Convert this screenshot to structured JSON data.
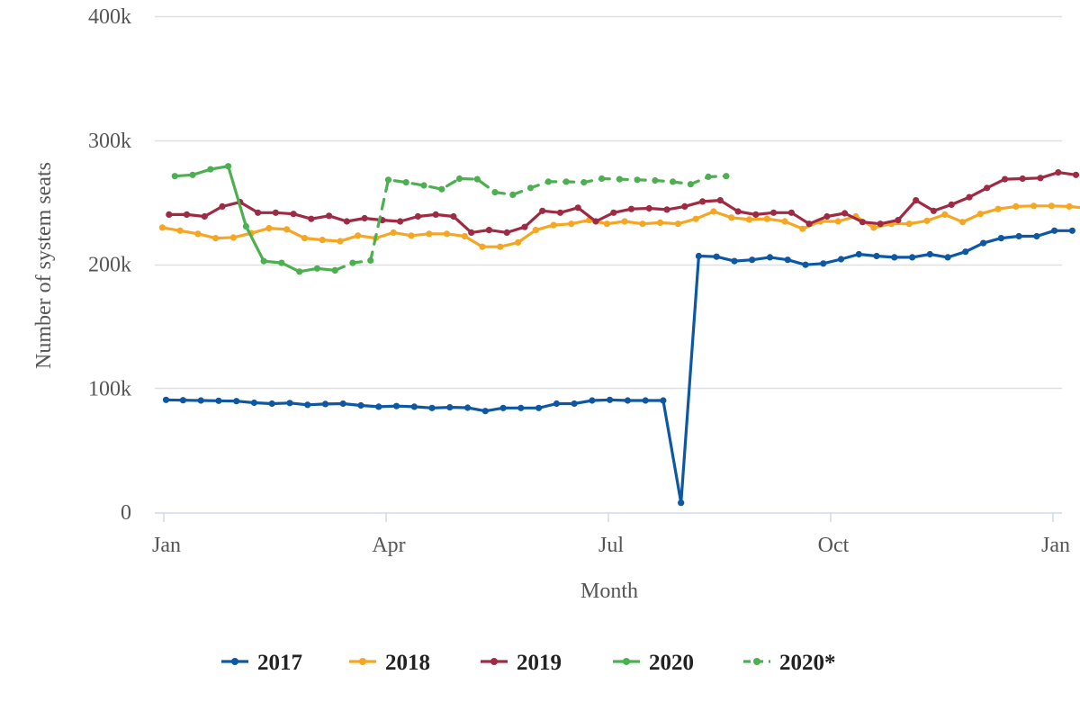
{
  "chart_data": {
    "type": "line",
    "xlabel": "Month",
    "ylabel": "Number of system seats",
    "ylim": [
      0,
      400000
    ],
    "xlim": [
      0,
      12
    ],
    "grid": "horizontal",
    "legend_position": "bottom",
    "y_ticks": [
      {
        "value": 0,
        "label": "0"
      },
      {
        "value": 100000,
        "label": "100k"
      },
      {
        "value": 200000,
        "label": "200k"
      },
      {
        "value": 300000,
        "label": "300k"
      },
      {
        "value": 400000,
        "label": "400k"
      }
    ],
    "x_ticks": [
      {
        "value": 0,
        "label": "Jan"
      },
      {
        "value": 3,
        "label": "Apr"
      },
      {
        "value": 6,
        "label": "Jul"
      },
      {
        "value": 9,
        "label": "Oct"
      },
      {
        "value": 12,
        "label": "Jan"
      }
    ],
    "x_unit": "months from Jan 1",
    "series": [
      {
        "name": "2017",
        "color": "#0d57a3",
        "dash": false,
        "points": [
          [
            0.03,
            90500
          ],
          [
            0.26,
            90200
          ],
          [
            0.5,
            90000
          ],
          [
            0.74,
            89800
          ],
          [
            0.98,
            89500
          ],
          [
            1.22,
            88200
          ],
          [
            1.46,
            87500
          ],
          [
            1.7,
            88000
          ],
          [
            1.94,
            86500
          ],
          [
            2.18,
            87200
          ],
          [
            2.42,
            87500
          ],
          [
            2.66,
            86000
          ],
          [
            2.9,
            85000
          ],
          [
            3.14,
            85500
          ],
          [
            3.38,
            85000
          ],
          [
            3.62,
            84000
          ],
          [
            3.86,
            84500
          ],
          [
            4.1,
            84200
          ],
          [
            4.34,
            81500
          ],
          [
            4.58,
            84000
          ],
          [
            4.82,
            84000
          ],
          [
            5.06,
            84000
          ],
          [
            5.3,
            87500
          ],
          [
            5.54,
            87500
          ],
          [
            5.78,
            90000
          ],
          [
            6.02,
            90500
          ],
          [
            6.26,
            90000
          ],
          [
            6.5,
            90000
          ],
          [
            6.74,
            90000
          ],
          [
            6.98,
            7500
          ],
          [
            7.22,
            206500
          ],
          [
            7.46,
            206000
          ],
          [
            7.7,
            202500
          ],
          [
            7.94,
            203500
          ],
          [
            8.18,
            205500
          ],
          [
            8.42,
            203500
          ],
          [
            8.66,
            199500
          ],
          [
            8.9,
            200500
          ],
          [
            9.14,
            204000
          ],
          [
            9.38,
            208000
          ],
          [
            9.62,
            206500
          ],
          [
            9.86,
            205500
          ],
          [
            10.1,
            205500
          ],
          [
            10.34,
            208000
          ],
          [
            10.58,
            205500
          ],
          [
            10.82,
            210000
          ],
          [
            11.06,
            217000
          ],
          [
            11.3,
            221000
          ],
          [
            11.54,
            222500
          ],
          [
            11.78,
            222500
          ],
          [
            12.02,
            227000
          ],
          [
            12.26,
            227000
          ]
        ]
      },
      {
        "name": "2018",
        "color": "#f5a623",
        "dash": false,
        "points": [
          [
            -0.02,
            229500
          ],
          [
            0.22,
            227000
          ],
          [
            0.46,
            224500
          ],
          [
            0.7,
            221000
          ],
          [
            0.94,
            221500
          ],
          [
            1.18,
            225000
          ],
          [
            1.42,
            229000
          ],
          [
            1.66,
            228000
          ],
          [
            1.9,
            221000
          ],
          [
            2.14,
            219500
          ],
          [
            2.38,
            218500
          ],
          [
            2.62,
            223000
          ],
          [
            2.86,
            221000
          ],
          [
            3.1,
            225500
          ],
          [
            3.34,
            223000
          ],
          [
            3.58,
            224500
          ],
          [
            3.82,
            224500
          ],
          [
            4.06,
            222500
          ],
          [
            4.3,
            214000
          ],
          [
            4.54,
            214000
          ],
          [
            4.78,
            217500
          ],
          [
            5.02,
            227500
          ],
          [
            5.26,
            231500
          ],
          [
            5.5,
            232500
          ],
          [
            5.74,
            235500
          ],
          [
            5.98,
            232500
          ],
          [
            6.22,
            234500
          ],
          [
            6.46,
            232500
          ],
          [
            6.7,
            233500
          ],
          [
            6.94,
            232500
          ],
          [
            7.18,
            236500
          ],
          [
            7.42,
            242500
          ],
          [
            7.66,
            237500
          ],
          [
            7.9,
            236000
          ],
          [
            8.14,
            236500
          ],
          [
            8.38,
            234500
          ],
          [
            8.62,
            228500
          ],
          [
            8.86,
            234500
          ],
          [
            9.1,
            234500
          ],
          [
            9.34,
            238500
          ],
          [
            9.58,
            229500
          ],
          [
            9.82,
            232500
          ],
          [
            10.06,
            232500
          ],
          [
            10.3,
            235000
          ],
          [
            10.54,
            240000
          ],
          [
            10.78,
            234000
          ],
          [
            11.02,
            240500
          ],
          [
            11.26,
            244500
          ],
          [
            11.5,
            246500
          ],
          [
            11.74,
            247000
          ],
          [
            11.98,
            247000
          ],
          [
            12.22,
            246500
          ],
          [
            12.46,
            245000
          ]
        ]
      },
      {
        "name": "2019",
        "color": "#9e2a43",
        "dash": false,
        "points": [
          [
            0.07,
            240000
          ],
          [
            0.31,
            240000
          ],
          [
            0.55,
            238500
          ],
          [
            0.79,
            246500
          ],
          [
            1.03,
            250000
          ],
          [
            1.27,
            241500
          ],
          [
            1.51,
            241500
          ],
          [
            1.75,
            240500
          ],
          [
            1.99,
            236500
          ],
          [
            2.23,
            239000
          ],
          [
            2.47,
            234500
          ],
          [
            2.71,
            237000
          ],
          [
            2.95,
            235500
          ],
          [
            3.19,
            234500
          ],
          [
            3.43,
            238500
          ],
          [
            3.67,
            240000
          ],
          [
            3.91,
            238500
          ],
          [
            4.15,
            225500
          ],
          [
            4.39,
            227500
          ],
          [
            4.63,
            225500
          ],
          [
            4.87,
            230000
          ],
          [
            5.11,
            243000
          ],
          [
            5.35,
            241500
          ],
          [
            5.59,
            245500
          ],
          [
            5.83,
            234500
          ],
          [
            6.07,
            241500
          ],
          [
            6.31,
            244500
          ],
          [
            6.55,
            245000
          ],
          [
            6.79,
            244000
          ],
          [
            7.03,
            246500
          ],
          [
            7.27,
            250500
          ],
          [
            7.51,
            251500
          ],
          [
            7.75,
            242500
          ],
          [
            7.99,
            240000
          ],
          [
            8.23,
            241500
          ],
          [
            8.47,
            241500
          ],
          [
            8.71,
            232500
          ],
          [
            8.95,
            238500
          ],
          [
            9.19,
            241000
          ],
          [
            9.43,
            234000
          ],
          [
            9.67,
            232500
          ],
          [
            9.91,
            235500
          ],
          [
            10.15,
            251500
          ],
          [
            10.39,
            243000
          ],
          [
            10.63,
            248000
          ],
          [
            10.87,
            254000
          ],
          [
            11.11,
            261500
          ],
          [
            11.35,
            268500
          ],
          [
            11.59,
            269000
          ],
          [
            11.83,
            269500
          ],
          [
            12.07,
            274000
          ],
          [
            12.31,
            272000
          ]
        ]
      },
      {
        "name": "2020",
        "color": "#4cb050",
        "dash": false,
        "points": [
          [
            0.15,
            271000
          ],
          [
            0.39,
            272000
          ],
          [
            0.63,
            276500
          ],
          [
            0.87,
            279000
          ],
          [
            1.11,
            230500
          ],
          [
            1.35,
            202500
          ],
          [
            1.59,
            201000
          ],
          [
            1.83,
            194000
          ],
          [
            2.07,
            196500
          ],
          [
            2.31,
            195000
          ]
        ]
      },
      {
        "name": "2020*",
        "color": "#4cb050",
        "dash": true,
        "points": [
          [
            2.31,
            195000
          ],
          [
            2.55,
            201000
          ],
          [
            2.79,
            203000
          ],
          [
            3.03,
            268000
          ],
          [
            3.27,
            266000
          ],
          [
            3.51,
            263500
          ],
          [
            3.75,
            260500
          ],
          [
            3.99,
            269000
          ],
          [
            4.23,
            268500
          ],
          [
            4.47,
            258000
          ],
          [
            4.71,
            256000
          ],
          [
            4.95,
            261500
          ],
          [
            5.19,
            266500
          ],
          [
            5.43,
            266500
          ],
          [
            5.67,
            266000
          ],
          [
            5.91,
            269000
          ],
          [
            6.15,
            268500
          ],
          [
            6.39,
            268000
          ],
          [
            6.63,
            267500
          ],
          [
            6.87,
            266500
          ],
          [
            7.11,
            264500
          ],
          [
            7.35,
            270500
          ],
          [
            7.59,
            271000
          ]
        ]
      }
    ]
  }
}
